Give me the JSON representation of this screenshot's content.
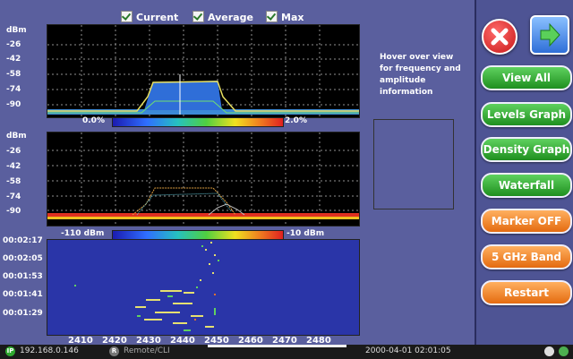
{
  "legend": {
    "current": "Current",
    "average": "Average",
    "max": "Max"
  },
  "graph1": {
    "unit": "dBm",
    "ticks": [
      "-26",
      "-42",
      "-58",
      "-74",
      "-90"
    ],
    "scale_min": "0.0%",
    "scale_max": "2.0%"
  },
  "graph2": {
    "unit": "dBm",
    "ticks": [
      "-26",
      "-42",
      "-58",
      "-74",
      "-90"
    ],
    "scale_min": "-110 dBm",
    "scale_max": "-10 dBm"
  },
  "waterfall": {
    "times": [
      "00:02:17",
      "00:02:05",
      "00:01:53",
      "00:01:41",
      "00:01:29"
    ]
  },
  "x_axis": {
    "ticks": [
      "2410",
      "2420",
      "2430",
      "2440",
      "2450",
      "2460",
      "2470",
      "2480"
    ]
  },
  "hover_text": "Hover over view for frequency and amplitude information",
  "buttons": {
    "close": "close",
    "next": "next",
    "view_all": "View All",
    "levels_graph": "Levels Graph",
    "density_graph": "Density Graph",
    "waterfall": "Waterfall",
    "marker_off": "Marker OFF",
    "band": "5 GHz Band",
    "restart": "Restart"
  },
  "status": {
    "ip": "192.168.0.146",
    "remote": "Remote/CLI",
    "datetime": "2000-04-01 02:01:05"
  },
  "colors": {
    "background": "#5a5f9e",
    "accent_green": "#2fa82f",
    "accent_orange": "#f07c1c"
  }
}
